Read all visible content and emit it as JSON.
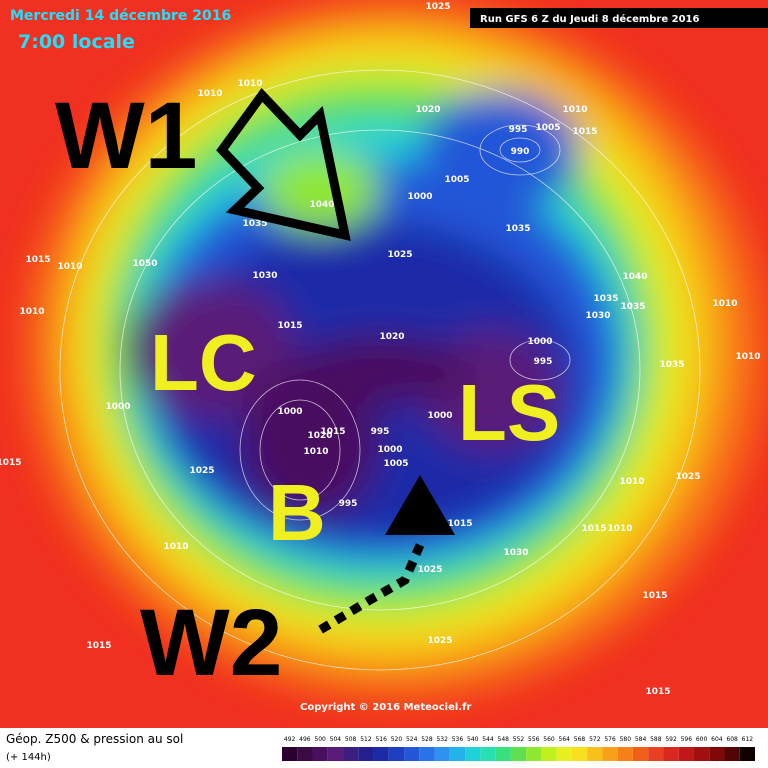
{
  "header": {
    "date": "Mercredi 14 décembre 2016",
    "time": "7:00 locale",
    "run": "Run GFS 6 Z du Jeudi 8 décembre 2016"
  },
  "annotations": {
    "w1": "W1",
    "w2": "W2",
    "lc": "LC",
    "ls": "LS",
    "b": "B"
  },
  "isobar_labels": [
    "1025",
    "1010",
    "1010",
    "1020",
    "1010",
    "1005",
    "1015",
    "995",
    "990",
    "1005",
    "1000",
    "1035",
    "1040",
    "1035",
    "1025",
    "1015",
    "1010",
    "1050",
    "1030",
    "1040",
    "1035",
    "1035",
    "1010",
    "1010",
    "1030",
    "1015",
    "1020",
    "1000",
    "995",
    "1010",
    "1035",
    "1000",
    "1000",
    "1000",
    "1020",
    "1015",
    "995",
    "1010",
    "1000",
    "1005",
    "1015",
    "1025",
    "1010",
    "1025",
    "995",
    "1015",
    "1015",
    "1010",
    "1010",
    "1030",
    "1025",
    "1015",
    "1015",
    "1025",
    "1015"
  ],
  "copyright": "Copyright © 2016 Meteociel.fr",
  "legend": {
    "title": "Géop. Z500 & pression au sol",
    "lead": "(+ 144h)",
    "scale": [
      492,
      496,
      500,
      504,
      508,
      512,
      516,
      520,
      524,
      528,
      532,
      536,
      540,
      544,
      548,
      552,
      556,
      560,
      564,
      568,
      572,
      576,
      580,
      584,
      588,
      592,
      596,
      600,
      604,
      608,
      612
    ],
    "colors": [
      "#2a0030",
      "#3a0a45",
      "#4a1060",
      "#5a1a78",
      "#3c1e80",
      "#23208e",
      "#1a2aa8",
      "#1e3fc0",
      "#2456d8",
      "#2a72e8",
      "#2c92ee",
      "#22b4e8",
      "#1ed2d8",
      "#28e0b0",
      "#3ae080",
      "#5ee050",
      "#90e830",
      "#c0f020",
      "#e8f020",
      "#f8e020",
      "#f8c018",
      "#f8a018",
      "#f88018",
      "#f06018",
      "#e84020",
      "#d82820",
      "#c01818",
      "#a01010",
      "#800808",
      "#500404",
      "#100000"
    ]
  }
}
